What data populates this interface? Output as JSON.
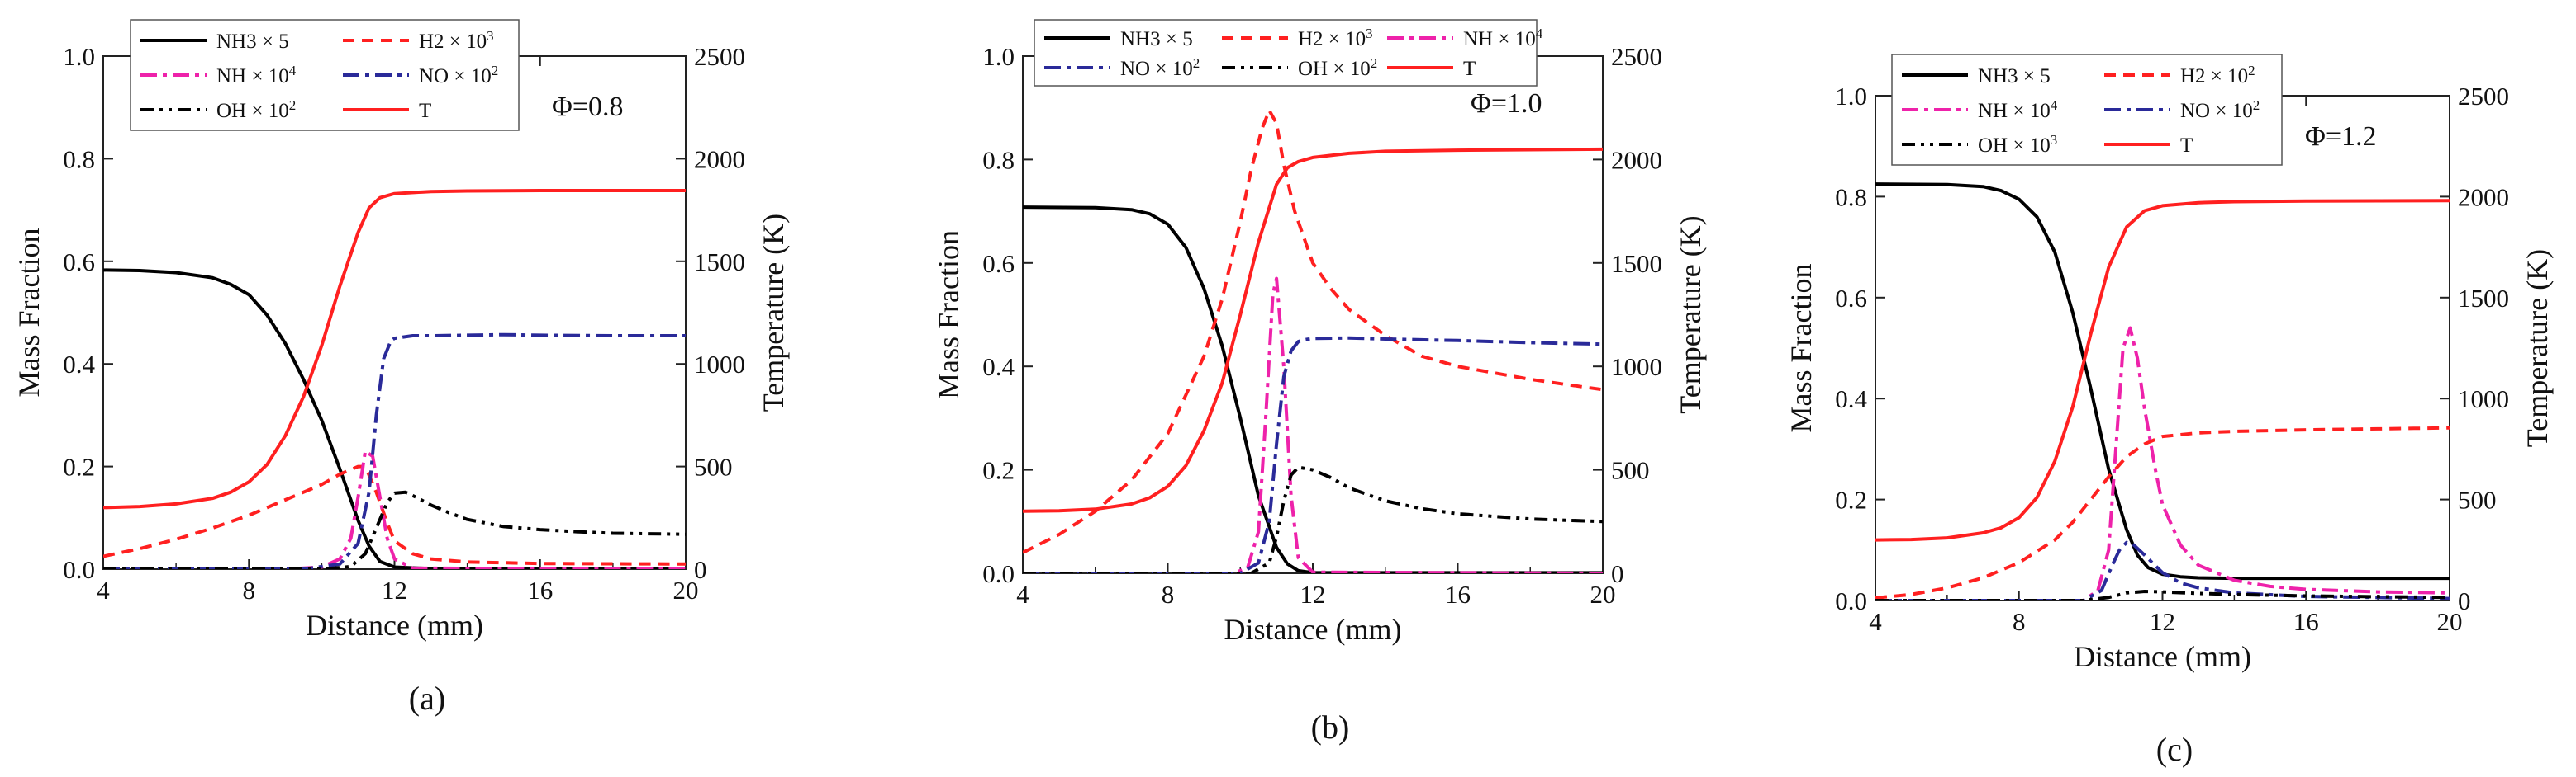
{
  "figure": {
    "subcaptions": [
      "(a)",
      "(b)",
      "(c)"
    ]
  },
  "chart_data": [
    {
      "type": "line",
      "id": "a",
      "annotation": "Φ=0.8",
      "xlabel": "Distance (mm)",
      "ylabel_left": "Mass Fraction",
      "ylabel_right": "Temperature (K)",
      "xlim": [
        4,
        20
      ],
      "ylim_left": [
        0,
        1.0
      ],
      "ylim_right": [
        0,
        2500
      ],
      "xticks": [
        4,
        8,
        12,
        16,
        20
      ],
      "yticks_left": [
        "0.0",
        "0.2",
        "0.4",
        "0.6",
        "0.8",
        "1.0"
      ],
      "yticks_right": [
        "0",
        "500",
        "1000",
        "1500",
        "2000",
        "2500"
      ],
      "series": [
        {
          "name": "NH3 × 5",
          "label_base": "NH3 × 5",
          "label_sup": "",
          "axis": "left",
          "color": "#000000",
          "dash": "solid",
          "x": [
            4,
            5,
            6,
            7,
            7.5,
            8,
            8.5,
            9,
            9.5,
            10,
            10.5,
            11,
            11.3,
            11.6,
            12,
            13,
            20
          ],
          "y": [
            0.583,
            0.582,
            0.578,
            0.568,
            0.555,
            0.535,
            0.495,
            0.44,
            0.37,
            0.29,
            0.195,
            0.095,
            0.045,
            0.015,
            0.004,
            0.001,
            0.001
          ]
        },
        {
          "name": "H2 × 10^3",
          "label_base": "H2 × 10",
          "label_sup": "3",
          "axis": "left",
          "color": "#ff2020",
          "dash": "dash",
          "x": [
            4,
            5,
            6,
            7,
            8,
            9,
            10,
            10.5,
            11,
            11.2,
            11.5,
            11.8,
            12,
            12.5,
            13,
            14,
            16,
            20
          ],
          "y": [
            0.025,
            0.04,
            0.058,
            0.08,
            0.105,
            0.135,
            0.165,
            0.185,
            0.2,
            0.2,
            0.15,
            0.09,
            0.055,
            0.03,
            0.02,
            0.014,
            0.011,
            0.01
          ]
        },
        {
          "name": "NH × 10^4",
          "label_base": "NH × 10",
          "label_sup": "4",
          "axis": "left",
          "color": "#ee22aa",
          "dash": "dashdot",
          "x": [
            4,
            9,
            10,
            10.5,
            10.8,
            11,
            11.2,
            11.4,
            11.6,
            11.8,
            12,
            12.5,
            20
          ],
          "y": [
            0,
            0,
            0.004,
            0.02,
            0.06,
            0.14,
            0.23,
            0.22,
            0.14,
            0.06,
            0.02,
            0.002,
            0
          ]
        },
        {
          "name": "NO × 10^2",
          "label_base": "NO × 10",
          "label_sup": "2",
          "axis": "left",
          "color": "#2a2a99",
          "dash": "dashdot",
          "x": [
            4,
            9.5,
            10.5,
            11,
            11.3,
            11.5,
            11.7,
            11.9,
            12,
            12.5,
            13,
            14,
            15,
            16,
            18,
            20
          ],
          "y": [
            0,
            0,
            0.01,
            0.05,
            0.15,
            0.3,
            0.41,
            0.445,
            0.45,
            0.455,
            0.455,
            0.456,
            0.457,
            0.456,
            0.455,
            0.455
          ]
        },
        {
          "name": "OH × 10^2",
          "label_base": "OH × 10",
          "label_sup": "2",
          "axis": "left",
          "color": "#000000",
          "dash": "dashdotdot",
          "x": [
            4,
            10,
            10.8,
            11.2,
            11.5,
            11.8,
            12,
            12.3,
            12.6,
            13,
            13.5,
            14,
            15,
            16,
            17,
            18,
            20
          ],
          "y": [
            0,
            0,
            0.005,
            0.03,
            0.08,
            0.13,
            0.148,
            0.15,
            0.14,
            0.125,
            0.11,
            0.097,
            0.083,
            0.077,
            0.073,
            0.07,
            0.068
          ]
        },
        {
          "name": "T",
          "label_base": "T",
          "label_sup": "",
          "axis": "right",
          "color": "#ff2020",
          "dash": "solid",
          "x": [
            4,
            5,
            6,
            7,
            7.5,
            8,
            8.5,
            9,
            9.5,
            10,
            10.5,
            11,
            11.3,
            11.6,
            12,
            13,
            14,
            16,
            20
          ],
          "y": [
            300,
            305,
            318,
            345,
            375,
            425,
            510,
            650,
            840,
            1090,
            1380,
            1640,
            1760,
            1810,
            1830,
            1840,
            1843,
            1845,
            1845
          ]
        }
      ],
      "legend_rows": [
        [
          "NH3 × 5",
          "H2 × 10^3"
        ],
        [
          "NH × 10^4",
          "NO × 10^2"
        ],
        [
          "OH × 10^2",
          "T"
        ]
      ]
    },
    {
      "type": "line",
      "id": "b",
      "annotation": "Φ=1.0",
      "xlabel": "Distance (mm)",
      "ylabel_left": "Mass Fraction",
      "ylabel_right": "Temperature (K)",
      "xlim": [
        4,
        20
      ],
      "ylim_left": [
        0,
        1.0
      ],
      "ylim_right": [
        0,
        2500
      ],
      "xticks": [
        4,
        8,
        12,
        16,
        20
      ],
      "yticks_left": [
        "0.0",
        "0.2",
        "0.4",
        "0.6",
        "0.8",
        "1.0"
      ],
      "yticks_right": [
        "0",
        "500",
        "1000",
        "1500",
        "2000",
        "2500"
      ],
      "series": [
        {
          "name": "NH3 × 5",
          "label_base": "NH3 × 5",
          "label_sup": "",
          "axis": "left",
          "color": "#000000",
          "dash": "solid",
          "x": [
            4,
            6,
            7,
            7.5,
            8,
            8.5,
            9,
            9.5,
            10,
            10.5,
            11,
            11.3,
            11.6,
            12,
            20
          ],
          "y": [
            0.708,
            0.707,
            0.703,
            0.695,
            0.675,
            0.63,
            0.55,
            0.44,
            0.3,
            0.15,
            0.05,
            0.018,
            0.005,
            0.001,
            0.001
          ]
        },
        {
          "name": "H2 × 10^3",
          "label_base": "H2 × 10",
          "label_sup": "3",
          "axis": "left",
          "color": "#ff2020",
          "dash": "dash",
          "x": [
            4,
            5,
            6,
            7,
            8,
            9,
            9.5,
            10,
            10.3,
            10.6,
            10.8,
            11,
            11.2,
            11.5,
            12,
            12.5,
            13,
            14,
            15,
            16,
            18,
            20
          ],
          "y": [
            0.04,
            0.075,
            0.12,
            0.18,
            0.27,
            0.42,
            0.53,
            0.68,
            0.78,
            0.86,
            0.895,
            0.87,
            0.79,
            0.7,
            0.6,
            0.55,
            0.51,
            0.46,
            0.42,
            0.4,
            0.375,
            0.355
          ]
        },
        {
          "name": "NH × 10^4",
          "label_base": "NH × 10",
          "label_sup": "4",
          "axis": "left",
          "color": "#ee22aa",
          "dash": "dashdot",
          "x": [
            4,
            9.8,
            10.2,
            10.5,
            10.7,
            10.9,
            11,
            11.2,
            11.4,
            11.6,
            12,
            20
          ],
          "y": [
            0,
            0,
            0.01,
            0.08,
            0.3,
            0.54,
            0.57,
            0.4,
            0.15,
            0.03,
            0.002,
            0
          ]
        },
        {
          "name": "NO × 10^2",
          "label_base": "NO × 10",
          "label_sup": "2",
          "axis": "left",
          "color": "#2a2a99",
          "dash": "dashdot",
          "x": [
            4,
            10,
            10.5,
            10.8,
            11,
            11.2,
            11.4,
            11.6,
            11.8,
            12,
            13,
            14,
            16,
            18,
            20
          ],
          "y": [
            0,
            0,
            0.02,
            0.1,
            0.25,
            0.38,
            0.43,
            0.448,
            0.452,
            0.454,
            0.455,
            0.453,
            0.45,
            0.446,
            0.443
          ]
        },
        {
          "name": "OH × 10^2",
          "label_base": "OH × 10",
          "label_sup": "2",
          "axis": "left",
          "color": "#000000",
          "dash": "dashdotdot",
          "x": [
            4,
            10.3,
            10.8,
            11,
            11.2,
            11.4,
            11.6,
            12,
            12.5,
            13,
            14,
            15,
            16,
            18,
            20
          ],
          "y": [
            0,
            0,
            0.02,
            0.07,
            0.14,
            0.19,
            0.205,
            0.2,
            0.185,
            0.165,
            0.14,
            0.125,
            0.115,
            0.105,
            0.1
          ]
        },
        {
          "name": "T",
          "label_base": "T",
          "label_sup": "",
          "axis": "right",
          "color": "#ff2020",
          "dash": "solid",
          "x": [
            4,
            5,
            6,
            7,
            7.5,
            8,
            8.5,
            9,
            9.5,
            10,
            10.5,
            11,
            11.3,
            11.6,
            12,
            13,
            14,
            16,
            20
          ],
          "y": [
            300,
            302,
            310,
            335,
            365,
            420,
            520,
            690,
            920,
            1250,
            1600,
            1880,
            1960,
            1990,
            2010,
            2030,
            2040,
            2045,
            2050
          ]
        }
      ],
      "legend_rows": [
        [
          "NH3 × 5",
          "H2 × 10^3",
          "NH × 10^4"
        ],
        [
          "NO × 10^2",
          "OH × 10^2",
          "T"
        ]
      ]
    },
    {
      "type": "line",
      "id": "c",
      "annotation": "Φ=1.2",
      "xlabel": "Distance (mm)",
      "ylabel_left": "Mass Fraction",
      "ylabel_right": "Temperature (K)",
      "xlim": [
        4,
        20
      ],
      "ylim_left": [
        0,
        1.0
      ],
      "ylim_right": [
        0,
        2500
      ],
      "xticks": [
        4,
        8,
        12,
        16,
        20
      ],
      "yticks_left": [
        "0.0",
        "0.2",
        "0.4",
        "0.6",
        "0.8",
        "1.0"
      ],
      "yticks_right": [
        "0",
        "500",
        "1000",
        "1500",
        "2000",
        "2500"
      ],
      "series": [
        {
          "name": "NH3 × 5",
          "label_base": "NH3 × 5",
          "label_sup": "",
          "axis": "left",
          "color": "#000000",
          "dash": "solid",
          "x": [
            4,
            6,
            7,
            7.5,
            8,
            8.5,
            9,
            9.5,
            10,
            10.5,
            11,
            11.3,
            11.6,
            12,
            12.5,
            13,
            14,
            20
          ],
          "y": [
            0.825,
            0.824,
            0.82,
            0.812,
            0.795,
            0.76,
            0.69,
            0.57,
            0.42,
            0.26,
            0.14,
            0.09,
            0.065,
            0.052,
            0.047,
            0.045,
            0.044,
            0.044
          ]
        },
        {
          "name": "H2 × 10^2",
          "label_base": "H2 × 10",
          "label_sup": "2",
          "axis": "left",
          "color": "#ff2020",
          "dash": "dash",
          "x": [
            4,
            5,
            6,
            7,
            8,
            9,
            9.5,
            10,
            10.5,
            11,
            11.5,
            12,
            13,
            14,
            16,
            18,
            20
          ],
          "y": [
            0.005,
            0.012,
            0.025,
            0.045,
            0.075,
            0.12,
            0.155,
            0.2,
            0.245,
            0.285,
            0.31,
            0.325,
            0.332,
            0.335,
            0.338,
            0.34,
            0.342
          ]
        },
        {
          "name": "NH × 10^4",
          "label_base": "NH × 10",
          "label_sup": "4",
          "axis": "left",
          "color": "#ee22aa",
          "dash": "dashdot",
          "x": [
            4,
            9.8,
            10.2,
            10.5,
            10.7,
            10.9,
            11.1,
            11.3,
            11.5,
            11.8,
            12,
            12.5,
            13,
            14,
            15,
            16,
            18,
            20
          ],
          "y": [
            0,
            0,
            0.02,
            0.1,
            0.3,
            0.5,
            0.54,
            0.48,
            0.38,
            0.26,
            0.19,
            0.11,
            0.07,
            0.04,
            0.028,
            0.022,
            0.017,
            0.015
          ]
        },
        {
          "name": "NO × 10^2",
          "label_base": "NO × 10",
          "label_sup": "2",
          "axis": "left",
          "color": "#2a2a99",
          "dash": "dashdot",
          "x": [
            4,
            9.8,
            10.3,
            10.6,
            10.8,
            11,
            11.2,
            11.5,
            12,
            12.5,
            13,
            14,
            16,
            20
          ],
          "y": [
            0,
            0,
            0.02,
            0.07,
            0.1,
            0.115,
            0.11,
            0.09,
            0.055,
            0.035,
            0.025,
            0.015,
            0.008,
            0.004
          ]
        },
        {
          "name": "OH × 10^3",
          "label_base": "OH × 10",
          "label_sup": "3",
          "axis": "left",
          "color": "#000000",
          "dash": "dashdotdot",
          "x": [
            4,
            9.8,
            10.5,
            11,
            11.5,
            12,
            13,
            14,
            16,
            20
          ],
          "y": [
            0,
            0,
            0.006,
            0.015,
            0.018,
            0.017,
            0.014,
            0.012,
            0.009,
            0.006
          ]
        },
        {
          "name": "T",
          "label_base": "T",
          "label_sup": "",
          "axis": "right",
          "color": "#ff2020",
          "dash": "solid",
          "x": [
            4,
            5,
            6,
            7,
            7.5,
            8,
            8.5,
            9,
            9.5,
            10,
            10.5,
            11,
            11.5,
            12,
            13,
            14,
            16,
            20
          ],
          "y": [
            300,
            302,
            310,
            335,
            360,
            410,
            510,
            690,
            960,
            1320,
            1650,
            1850,
            1930,
            1955,
            1970,
            1975,
            1978,
            1980
          ]
        }
      ],
      "legend_rows": [
        [
          "NH3 × 5",
          "H2 × 10^2"
        ],
        [
          "NH × 10^4",
          "NO × 10^2"
        ],
        [
          "OH × 10^3",
          "T"
        ]
      ]
    }
  ]
}
